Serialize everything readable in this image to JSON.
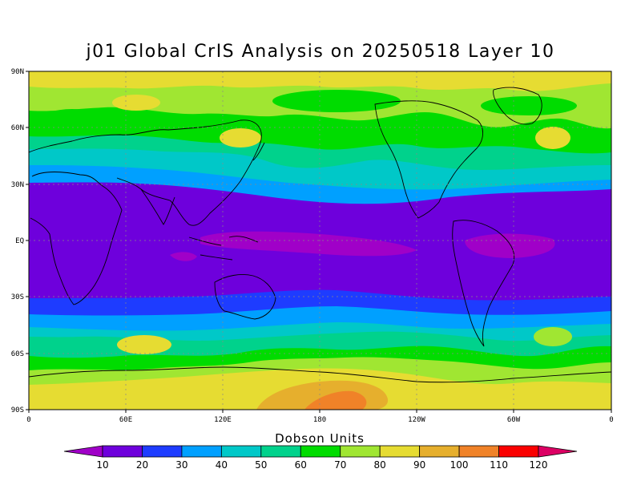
{
  "title": "j01 Global CrIS Analysis on 20250518 Layer 10",
  "lat_ticks": [
    "90N",
    "60N",
    "30N",
    "EQ",
    "30S",
    "60S",
    "90S"
  ],
  "lon_ticks": [
    "0",
    "60E",
    "120E",
    "180",
    "120W",
    "60W",
    "0"
  ],
  "colorbar": {
    "title": "Dobson Units",
    "levels": [
      10,
      20,
      30,
      40,
      50,
      60,
      70,
      80,
      90,
      100,
      110,
      120
    ],
    "colors": [
      "#a000c8",
      "#6e00dc",
      "#1e3cff",
      "#00a0ff",
      "#00c8c8",
      "#00d28c",
      "#00dc00",
      "#a0e632",
      "#e6dc32",
      "#e6af2d",
      "#f08228",
      "#fa0000",
      "#dc0064"
    ]
  }
}
